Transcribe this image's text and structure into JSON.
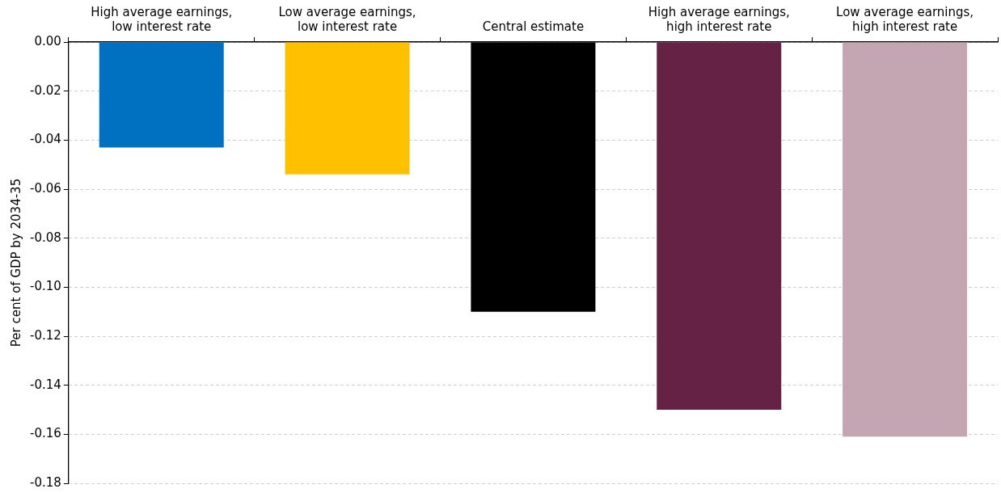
{
  "chart_data": {
    "type": "bar",
    "ylabel": "Per cent of GDP by 2034-35",
    "categories": [
      "High average earnings, low interest rate",
      "Low average earnings, low interest rate",
      "Central estimate",
      "High average earnings, high interest rate",
      "Low average earnings, high interest rate"
    ],
    "values": [
      -0.043,
      -0.054,
      -0.11,
      -0.15,
      -0.161
    ],
    "colors": [
      "#0070c0",
      "#ffc000",
      "#000000",
      "#662244",
      "#c4a6b3"
    ],
    "ylim": [
      -0.18,
      0
    ],
    "yticks": [
      {
        "value": 0,
        "label": "0.00"
      },
      {
        "value": -0.02,
        "label": "-0.02"
      },
      {
        "value": -0.04,
        "label": "-0.04"
      },
      {
        "value": -0.06,
        "label": "-0.06"
      },
      {
        "value": -0.08,
        "label": "-0.08"
      },
      {
        "value": -0.1,
        "label": "-0.10"
      },
      {
        "value": -0.12,
        "label": "-0.12"
      },
      {
        "value": -0.14,
        "label": "-0.14"
      },
      {
        "value": -0.16,
        "label": "-0.16"
      },
      {
        "value": -0.18,
        "label": "-0.18"
      }
    ],
    "grid": "y",
    "legend": false
  }
}
